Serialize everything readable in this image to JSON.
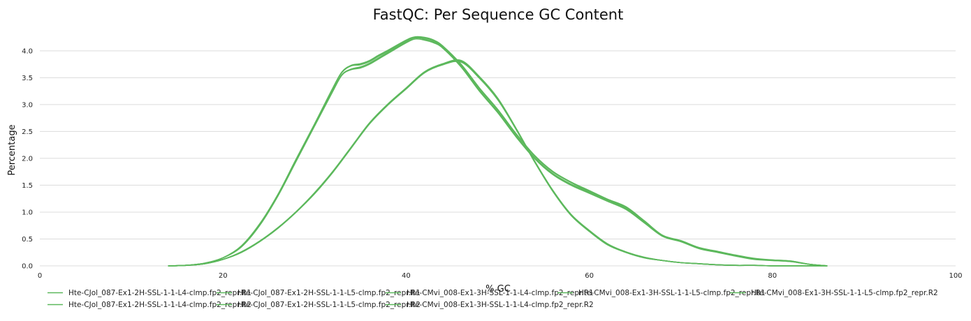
{
  "chart_data": {
    "type": "line",
    "title": "FastQC: Per Sequence GC Content",
    "xlabel": "% GC",
    "ylabel": "Percentage",
    "xlim": [
      0,
      100
    ],
    "ylim": [
      0,
      4.4
    ],
    "xticks": [
      0,
      20,
      40,
      60,
      80,
      100
    ],
    "yticks": [
      0,
      0.5,
      1.0,
      1.5,
      2.0,
      2.5,
      3.0,
      3.5,
      4.0
    ],
    "ytick_labels": [
      "0.0",
      "0.5",
      "1.0",
      "1.5",
      "2.0",
      "2.5",
      "3.0",
      "3.5",
      "4.0"
    ],
    "grid": true,
    "legend_position": "bottom",
    "series_color": "#5cb85c",
    "series": [
      {
        "name": "Hte-CJol_087-Ex1-2H-SSL-1-1-L4-clmp.fp2_repr.R1",
        "x": [
          14,
          16,
          18,
          20,
          22,
          24,
          26,
          28,
          30,
          32,
          34,
          36,
          38,
          40,
          42,
          44,
          46,
          48,
          50,
          52,
          54,
          56,
          58,
          60,
          62,
          64,
          66,
          68,
          70,
          72,
          74,
          76,
          78,
          80,
          82,
          84,
          86
        ],
        "y": [
          0,
          0.01,
          0.04,
          0.12,
          0.25,
          0.45,
          0.7,
          1.0,
          1.35,
          1.75,
          2.2,
          2.65,
          3.0,
          3.3,
          3.6,
          3.75,
          3.8,
          3.5,
          3.1,
          2.55,
          1.95,
          1.4,
          0.95,
          0.65,
          0.4,
          0.25,
          0.15,
          0.1,
          0.06,
          0.04,
          0.02,
          0.01,
          0.01,
          0,
          0,
          0,
          0
        ]
      },
      {
        "name": "Hte-CJol_087-Ex1-2H-SSL-1-1-L4-clmp.fp2_repr.R2",
        "x": [
          14,
          16,
          18,
          20,
          22,
          24,
          26,
          28,
          30,
          32,
          34,
          36,
          38,
          40,
          42,
          44,
          46,
          48,
          50,
          52,
          54,
          56,
          58,
          60,
          62,
          64,
          66,
          68,
          70,
          72,
          74,
          76,
          78,
          80,
          82,
          84,
          86
        ],
        "y": [
          0,
          0.01,
          0.04,
          0.12,
          0.26,
          0.46,
          0.71,
          1.01,
          1.36,
          1.76,
          2.21,
          2.66,
          3.01,
          3.31,
          3.61,
          3.76,
          3.82,
          3.52,
          3.12,
          2.56,
          1.96,
          1.41,
          0.96,
          0.66,
          0.41,
          0.26,
          0.16,
          0.1,
          0.06,
          0.04,
          0.02,
          0.01,
          0.01,
          0,
          0,
          0,
          0
        ]
      },
      {
        "name": "Hte-CJol_087-Ex1-2H-SSL-1-1-L5-clmp.fp2_repr.R1",
        "x": [
          14,
          16,
          18,
          20,
          22,
          24,
          26,
          28,
          30,
          32,
          34,
          36,
          38,
          40,
          42,
          44,
          46,
          48,
          50,
          52,
          54,
          56,
          58,
          60,
          62,
          64,
          66,
          68,
          70,
          72,
          74,
          76,
          78,
          80,
          82,
          84,
          86
        ],
        "y": [
          0,
          0.01,
          0.04,
          0.12,
          0.25,
          0.45,
          0.7,
          1.0,
          1.34,
          1.74,
          2.19,
          2.64,
          2.99,
          3.29,
          3.59,
          3.74,
          3.79,
          3.49,
          3.09,
          2.54,
          1.94,
          1.39,
          0.94,
          0.64,
          0.39,
          0.25,
          0.15,
          0.1,
          0.06,
          0.04,
          0.02,
          0.01,
          0.01,
          0,
          0,
          0,
          0
        ]
      },
      {
        "name": "Hte-CJol_087-Ex1-2H-SSL-1-1-L5-clmp.fp2_repr.R2",
        "x": [
          14,
          16,
          18,
          20,
          22,
          24,
          26,
          28,
          30,
          32,
          34,
          36,
          38,
          40,
          42,
          44,
          46,
          48,
          50,
          52,
          54,
          56,
          58,
          60,
          62,
          64,
          66,
          68,
          70,
          72,
          74,
          76,
          78,
          80,
          82,
          84,
          86
        ],
        "y": [
          0,
          0.01,
          0.04,
          0.12,
          0.26,
          0.46,
          0.71,
          1.01,
          1.35,
          1.75,
          2.2,
          2.65,
          3.0,
          3.3,
          3.6,
          3.75,
          3.81,
          3.51,
          3.11,
          2.55,
          1.95,
          1.4,
          0.95,
          0.65,
          0.4,
          0.26,
          0.16,
          0.1,
          0.06,
          0.04,
          0.02,
          0.01,
          0.01,
          0,
          0,
          0,
          0
        ]
      },
      {
        "name": "Hte-CMvi_008-Ex1-3H-SSL-1-1-L4-clmp.fp2_repr.R1",
        "x": [
          14,
          16,
          18,
          20,
          22,
          24,
          26,
          28,
          30,
          32,
          33,
          34,
          35,
          36,
          37,
          38,
          40,
          41,
          42,
          43,
          44,
          46,
          48,
          50,
          52,
          54,
          56,
          58,
          60,
          62,
          64,
          66,
          68,
          70,
          72,
          74,
          76,
          78,
          80,
          82,
          84,
          86
        ],
        "y": [
          0,
          0.01,
          0.05,
          0.15,
          0.35,
          0.75,
          1.3,
          1.95,
          2.6,
          3.25,
          3.55,
          3.65,
          3.68,
          3.75,
          3.85,
          3.95,
          4.15,
          4.22,
          4.2,
          4.15,
          4.05,
          3.7,
          3.25,
          2.85,
          2.4,
          2.0,
          1.7,
          1.5,
          1.35,
          1.2,
          1.05,
          0.8,
          0.55,
          0.45,
          0.32,
          0.25,
          0.18,
          0.12,
          0.1,
          0.08,
          0.03,
          0
        ]
      },
      {
        "name": "Hte-CMvi_008-Ex1-3H-SSL-1-1-L4-clmp.fp2_repr.R2",
        "x": [
          14,
          16,
          18,
          20,
          22,
          24,
          26,
          28,
          30,
          32,
          33,
          34,
          35,
          36,
          37,
          38,
          40,
          41,
          42,
          43,
          44,
          46,
          48,
          50,
          52,
          54,
          56,
          58,
          60,
          62,
          64,
          66,
          68,
          70,
          72,
          74,
          76,
          78,
          80,
          82,
          84,
          86
        ],
        "y": [
          0,
          0.01,
          0.05,
          0.15,
          0.36,
          0.76,
          1.31,
          1.96,
          2.61,
          3.26,
          3.56,
          3.66,
          3.7,
          3.77,
          3.87,
          3.97,
          4.17,
          4.24,
          4.22,
          4.17,
          4.07,
          3.72,
          3.27,
          2.87,
          2.42,
          2.02,
          1.72,
          1.52,
          1.37,
          1.22,
          1.07,
          0.82,
          0.56,
          0.46,
          0.33,
          0.26,
          0.19,
          0.13,
          0.1,
          0.08,
          0.03,
          0
        ]
      },
      {
        "name": "Hte-CMvi_008-Ex1-3H-SSL-1-1-L5-clmp.fp2_repr.R1",
        "x": [
          14,
          16,
          18,
          20,
          22,
          24,
          26,
          28,
          30,
          32,
          33,
          34,
          35,
          36,
          37,
          38,
          40,
          41,
          42,
          43,
          44,
          46,
          48,
          50,
          52,
          54,
          56,
          58,
          60,
          62,
          64,
          66,
          68,
          70,
          72,
          74,
          76,
          78,
          80,
          82,
          84,
          86
        ],
        "y": [
          0,
          0.01,
          0.05,
          0.15,
          0.36,
          0.77,
          1.32,
          1.98,
          2.63,
          3.3,
          3.6,
          3.72,
          3.74,
          3.8,
          3.9,
          3.99,
          4.18,
          4.25,
          4.24,
          4.19,
          4.08,
          3.74,
          3.3,
          2.9,
          2.45,
          2.05,
          1.75,
          1.55,
          1.38,
          1.23,
          1.08,
          0.82,
          0.56,
          0.46,
          0.33,
          0.26,
          0.19,
          0.13,
          0.11,
          0.09,
          0.03,
          0
        ]
      },
      {
        "name": "Hte-CMvi_008-Ex1-3H-SSL-1-1-L5-clmp.fp2_repr.R2",
        "x": [
          14,
          16,
          18,
          20,
          22,
          24,
          26,
          28,
          30,
          32,
          33,
          34,
          35,
          36,
          37,
          38,
          40,
          41,
          42,
          43,
          44,
          46,
          48,
          50,
          52,
          54,
          56,
          58,
          60,
          62,
          64,
          66,
          68,
          70,
          72,
          74,
          76,
          78,
          80,
          82,
          84,
          86
        ],
        "y": [
          0,
          0.01,
          0.05,
          0.15,
          0.37,
          0.78,
          1.33,
          1.99,
          2.64,
          3.31,
          3.61,
          3.73,
          3.76,
          3.82,
          3.92,
          4.01,
          4.2,
          4.26,
          4.25,
          4.2,
          4.09,
          3.75,
          3.31,
          2.91,
          2.46,
          2.06,
          1.76,
          1.56,
          1.4,
          1.24,
          1.1,
          0.84,
          0.57,
          0.47,
          0.34,
          0.27,
          0.2,
          0.14,
          0.11,
          0.09,
          0.03,
          0
        ]
      }
    ]
  }
}
